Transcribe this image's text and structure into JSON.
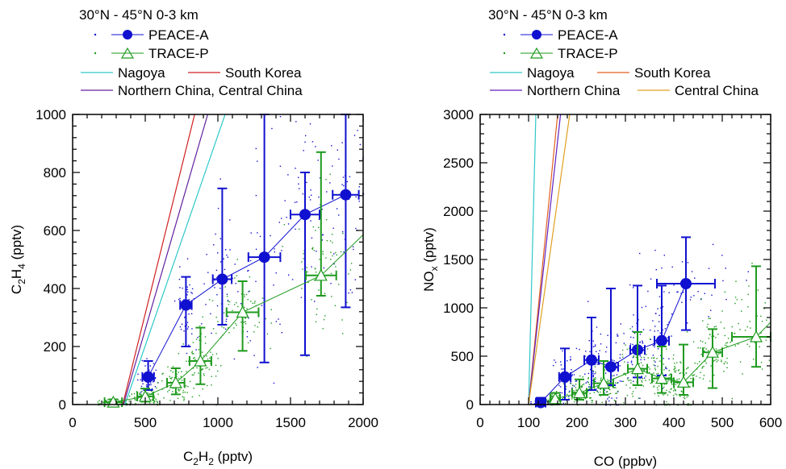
{
  "chart_data": [
    {
      "type": "scatter",
      "title": "30°N - 45°N   0-3 km",
      "xlabel": "C2H2 (pptv)",
      "xlabel_parts": {
        "base": "C",
        "sub1": "2",
        "mid": "H",
        "sub2": "2",
        "unit": " (pptv)"
      },
      "ylabel": "C2H4 (pptv)",
      "ylabel_parts": {
        "base": "C",
        "sub1": "2",
        "mid": "H",
        "sub2": "4",
        "unit": " (pptv)"
      },
      "xlim": [
        0,
        2000
      ],
      "ylim": [
        0,
        1000
      ],
      "xticks": [
        0,
        500,
        1000,
        1500,
        2000
      ],
      "yticks": [
        0,
        200,
        400,
        600,
        800,
        1000
      ],
      "legend": {
        "series": [
          "PEACE-A",
          "TRACE-P"
        ],
        "lines": [
          "Nagoya",
          "South Korea",
          "Northern China, Central China"
        ]
      },
      "colors": {
        "peace": "#1010d0",
        "trace": "#1e9a1e",
        "nagoya": "#30c8c8",
        "korea": "#d02020",
        "china": "#6020a0"
      },
      "series": [
        {
          "name": "PEACE-A",
          "x": [
            520,
            780,
            1030,
            1320,
            1600,
            1880
          ],
          "y": [
            95,
            343,
            432,
            508,
            655,
            723
          ],
          "xerr": [
            40,
            40,
            65,
            110,
            100,
            90
          ],
          "ylow": [
            50,
            200,
            275,
            145,
            170,
            335
          ],
          "yhigh": [
            150,
            440,
            745,
            1000,
            800,
            1000
          ]
        },
        {
          "name": "TRACE-P",
          "x": [
            280,
            500,
            710,
            880,
            1170,
            1710
          ],
          "y": [
            8,
            28,
            75,
            150,
            318,
            445
          ],
          "xerr": [
            60,
            55,
            60,
            75,
            110,
            105
          ],
          "ylow": [
            0,
            10,
            35,
            70,
            185,
            375
          ],
          "yhigh": [
            18,
            55,
            125,
            265,
            425,
            870
          ],
          "trend_end": [
            2000,
            585
          ]
        }
      ],
      "emission_lines": [
        {
          "name": "Nagoya",
          "x": [
            360,
            1050
          ],
          "y": [
            0,
            1000
          ]
        },
        {
          "name": "South Korea",
          "x": [
            345,
            840
          ],
          "y": [
            0,
            1000
          ]
        },
        {
          "name": "Northern China, Central China",
          "x": [
            350,
            930
          ],
          "y": [
            0,
            1000
          ]
        }
      ]
    },
    {
      "type": "scatter",
      "title": "30°N - 45°N   0-3 km",
      "xlabel": "CO (ppbv)",
      "ylabel": "NOx (pptv)",
      "ylabel_parts": {
        "base": "NO",
        "sub": "x",
        "unit": " (pptv)"
      },
      "xlim": [
        0,
        600
      ],
      "ylim": [
        0,
        3000
      ],
      "xticks": [
        0,
        100,
        200,
        300,
        400,
        500,
        600
      ],
      "yticks": [
        0,
        500,
        1000,
        1500,
        2000,
        2500,
        3000
      ],
      "legend": {
        "series": [
          "PEACE-A",
          "TRACE-P"
        ],
        "lines": [
          "Nagoya",
          "South Korea",
          "Northern China",
          "Central China"
        ]
      },
      "colors": {
        "peace": "#1010d0",
        "trace": "#1e9a1e",
        "nagoya": "#30c8c8",
        "korea": "#e06020",
        "nchina": "#6020c0",
        "cchina": "#e0a020"
      },
      "series": [
        {
          "name": "PEACE-A",
          "x": [
            125,
            175,
            230,
            270,
            325,
            375,
            425
          ],
          "y": [
            20,
            285,
            460,
            390,
            565,
            660,
            1250
          ],
          "xerr": [
            10,
            12,
            15,
            15,
            15,
            15,
            60
          ],
          "ylow": [
            0,
            50,
            150,
            200,
            280,
            300,
            770
          ],
          "yhigh": [
            70,
            580,
            900,
            1200,
            1230,
            1230,
            1730
          ]
        },
        {
          "name": "TRACE-P",
          "x": [
            155,
            205,
            255,
            325,
            375,
            420,
            480,
            570
          ],
          "y": [
            60,
            120,
            220,
            370,
            270,
            230,
            540,
            700
          ],
          "xerr": [
            10,
            15,
            20,
            20,
            20,
            20,
            20,
            50
          ],
          "ylow": [
            0,
            50,
            100,
            200,
            120,
            100,
            170,
            390
          ],
          "yhigh": [
            120,
            260,
            450,
            750,
            600,
            620,
            780,
            1430
          ],
          "trend_end": [
            600,
            850
          ]
        }
      ],
      "emission_lines": [
        {
          "name": "Nagoya",
          "x": [
            100,
            115
          ],
          "y": [
            0,
            3000
          ]
        },
        {
          "name": "South Korea",
          "x": [
            100,
            160
          ],
          "y": [
            0,
            3000
          ]
        },
        {
          "name": "Northern China",
          "x": [
            100,
            166
          ],
          "y": [
            0,
            3000
          ]
        },
        {
          "name": "Central China",
          "x": [
            100,
            185
          ],
          "y": [
            0,
            3000
          ]
        }
      ]
    }
  ]
}
